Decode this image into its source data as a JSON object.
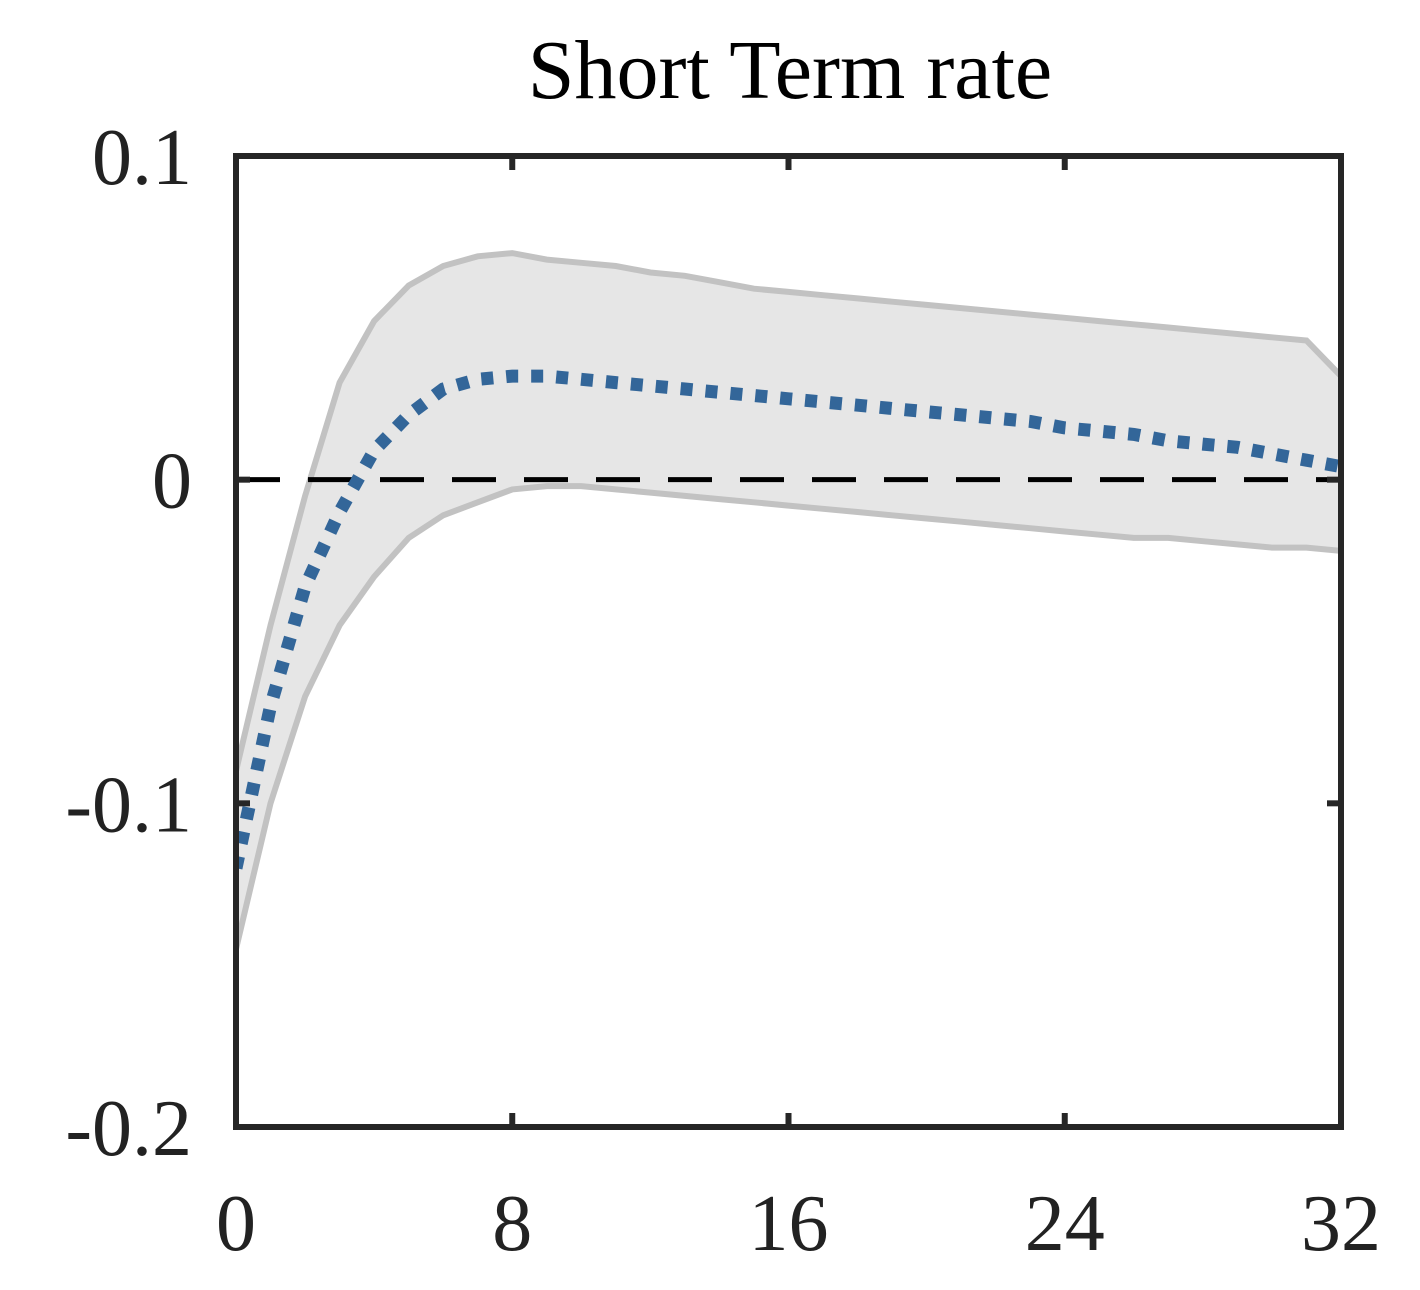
{
  "chart_data": {
    "type": "line",
    "title": "Short Term rate",
    "xlabel": "",
    "ylabel": "",
    "xlim": [
      0,
      32
    ],
    "ylim": [
      -0.2,
      0.1
    ],
    "x_ticks": [
      0,
      8,
      16,
      24,
      32
    ],
    "x_tick_labels": [
      "0",
      "8",
      "16",
      "24",
      "32"
    ],
    "y_ticks": [
      -0.2,
      -0.1,
      0,
      0.1
    ],
    "y_tick_labels": [
      "-0.2",
      "-0.1",
      "0",
      "0.1"
    ],
    "grid": false,
    "zero_line": {
      "y": 0,
      "style": "dashed",
      "color": "#000000"
    },
    "x": [
      0,
      1,
      2,
      3,
      4,
      5,
      6,
      7,
      8,
      9,
      10,
      11,
      12,
      13,
      14,
      15,
      16,
      17,
      18,
      19,
      20,
      21,
      22,
      23,
      24,
      25,
      26,
      27,
      28,
      29,
      30,
      31,
      32
    ],
    "series": [
      {
        "role": "median",
        "style": "dotted",
        "color": "#336699",
        "values": [
          -0.12,
          -0.07,
          -0.033,
          -0.01,
          0.009,
          0.02,
          0.028,
          0.031,
          0.032,
          0.032,
          0.031,
          0.03,
          0.029,
          0.028,
          0.027,
          0.026,
          0.025,
          0.024,
          0.023,
          0.022,
          0.021,
          0.02,
          0.019,
          0.018,
          0.016,
          0.015,
          0.014,
          0.012,
          0.011,
          0.01,
          0.008,
          0.006,
          0.004
        ]
      }
    ],
    "band": {
      "color": "#e6e6e6",
      "edge_color": "#c2c2c2",
      "lower": [
        -0.145,
        -0.1,
        -0.067,
        -0.045,
        -0.03,
        -0.018,
        -0.011,
        -0.007,
        -0.003,
        -0.002,
        -0.002,
        -0.003,
        -0.004,
        -0.005,
        -0.006,
        -0.007,
        -0.008,
        -0.009,
        -0.01,
        -0.011,
        -0.012,
        -0.013,
        -0.014,
        -0.015,
        -0.016,
        -0.017,
        -0.018,
        -0.018,
        -0.019,
        -0.02,
        -0.021,
        -0.021,
        -0.022
      ],
      "upper": [
        -0.09,
        -0.045,
        -0.005,
        0.03,
        0.049,
        0.06,
        0.066,
        0.069,
        0.07,
        0.068,
        0.067,
        0.066,
        0.064,
        0.063,
        0.061,
        0.059,
        0.058,
        0.057,
        0.056,
        0.055,
        0.054,
        0.053,
        0.052,
        0.051,
        0.05,
        0.049,
        0.048,
        0.047,
        0.046,
        0.045,
        0.044,
        0.043,
        0.032
      ]
    }
  }
}
